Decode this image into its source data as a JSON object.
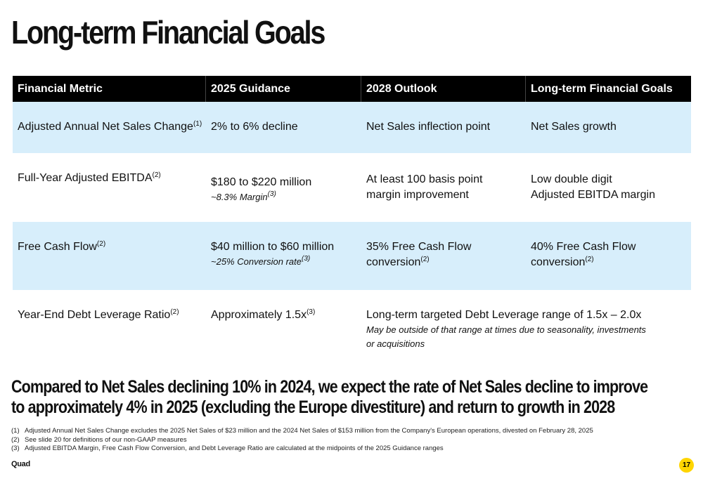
{
  "title": "Long-term Financial Goals",
  "table": {
    "headers": [
      "Financial Metric",
      "2025 Guidance",
      "2028 Outlook",
      "Long-term Financial Goals"
    ],
    "rows": [
      {
        "metric": "Adjusted Annual Net Sales Change",
        "metric_note": "(1)",
        "guidance": "2% to 6% decline",
        "outlook": "Net Sales inflection point",
        "goal": "Net Sales growth"
      },
      {
        "metric": "Full-Year Adjusted EBITDA",
        "metric_note": "(2)",
        "guidance": "$180 to $220 million",
        "guidance_sub": "~8.3% Margin",
        "guidance_sub_note": "(3)",
        "outlook_line1": "At least 100 basis point",
        "outlook_line2": "margin improvement",
        "goal_line1": "Low double digit",
        "goal_line2": "Adjusted EBITDA margin"
      },
      {
        "metric": "Free Cash Flow",
        "metric_note": "(2)",
        "guidance": "$40 million to $60 million",
        "guidance_sub": "~25% Conversion rate",
        "guidance_sub_note": "(3)",
        "outlook_line1": "35% Free Cash Flow",
        "outlook_line2": "conversion",
        "outlook_note": "(2)",
        "goal_line1": "40% Free Cash Flow",
        "goal_line2": "conversion",
        "goal_note": "(2)"
      },
      {
        "metric": "Year-End Debt Leverage Ratio",
        "metric_note": "(2)",
        "guidance": "Approximately 1.5x",
        "guidance_note": "(3)",
        "combined": "Long-term targeted Debt Leverage range of 1.5x – 2.0x",
        "combined_sub_line1": "May be outside of that range at times due to seasonality, investments",
        "combined_sub_line2": "or acquisitions"
      }
    ]
  },
  "highlight": "Compared to Net Sales declining 10% in 2024, we expect the rate of Net Sales decline to improve to approximately 4% in 2025 (excluding the Europe divestiture) and return to growth in 2028",
  "footnotes": [
    {
      "num": "(1)",
      "text": "Adjusted Annual Net Sales Change excludes the 2025 Net Sales of $23 million and the 2024 Net Sales of $153 million from the Company's European operations, divested on February 28, 2025"
    },
    {
      "num": "(2)",
      "text": "See slide 20 for definitions of our non-GAAP measures"
    },
    {
      "num": "(3)",
      "text": "Adjusted EBITDA Margin, Free Cash Flow Conversion, and Debt Leverage Ratio are calculated at the midpoints of the 2025 Guidance ranges"
    }
  ],
  "brand": "Quad",
  "page_number": "17",
  "colors": {
    "header_bg": "#000000",
    "band_bg": "#d7eefb",
    "badge": "#ffd500"
  }
}
